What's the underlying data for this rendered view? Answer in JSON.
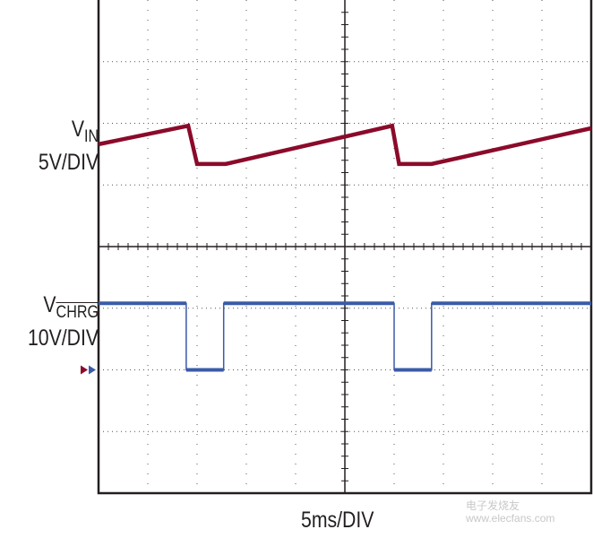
{
  "chart_data": {
    "type": "line",
    "title": "",
    "xlabel": "5ms/DIV",
    "x_unit": "ms",
    "xlim": [
      0,
      50
    ],
    "x_divisions": 10,
    "y_divisions": 8,
    "grid": true,
    "series": [
      {
        "name": "VIN",
        "label_main": "V",
        "label_sub": "IN",
        "scale": "5V/DIV",
        "color": "#8b0a2a",
        "unit": "V",
        "x": [
          0,
          9.1,
          10.0,
          12.9,
          29.8,
          30.5,
          33.8,
          50
        ],
        "y": [
          18.3,
          19.8,
          16.7,
          16.7,
          19.8,
          16.7,
          16.7,
          19.6
        ]
      },
      {
        "name": "VCHRG",
        "label_main": "V",
        "label_sub": "CHRG",
        "scale": "10V/DIV",
        "color": "#3a5ba8",
        "unit": "V",
        "x": [
          0,
          8.9,
          8.9,
          12.7,
          12.7,
          30.0,
          30.0,
          33.8,
          33.8,
          50
        ],
        "y": [
          10.8,
          10.8,
          0,
          0,
          10.8,
          10.8,
          0,
          0,
          10.8,
          10.8
        ]
      }
    ],
    "ground_marker_volts": 0
  },
  "watermark": {
    "line1": "电子发烧友",
    "line2": "www.elecfans.com"
  }
}
